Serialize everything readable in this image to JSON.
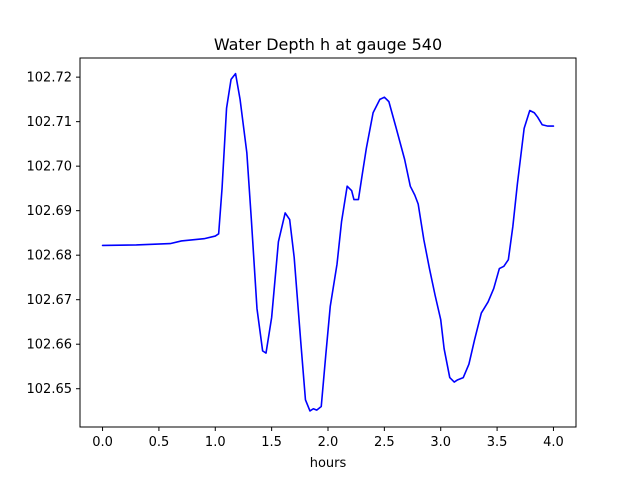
{
  "chart_data": {
    "type": "line",
    "title": "Water Depth h at gauge 540",
    "xlabel": "hours",
    "ylabel": "",
    "xlim": [
      -0.2,
      4.2
    ],
    "ylim": [
      102.6414,
      102.7243
    ],
    "x_ticks": [
      0.0,
      0.5,
      1.0,
      1.5,
      2.0,
      2.5,
      3.0,
      3.5,
      4.0
    ],
    "x_tick_labels": [
      "0.0",
      "0.5",
      "1.0",
      "1.5",
      "2.0",
      "2.5",
      "3.0",
      "3.5",
      "4.0"
    ],
    "y_ticks": [
      102.65,
      102.66,
      102.67,
      102.68,
      102.69,
      102.7,
      102.71,
      102.72
    ],
    "y_tick_labels": [
      "102.65",
      "102.66",
      "102.67",
      "102.68",
      "102.69",
      "102.70",
      "102.71",
      "102.72"
    ],
    "grid": false,
    "series": [
      {
        "color": "#0000ff",
        "x": [
          0.0,
          0.3,
          0.6,
          0.7,
          0.9,
          1.0,
          1.03,
          1.06,
          1.1,
          1.14,
          1.18,
          1.22,
          1.28,
          1.32,
          1.37,
          1.42,
          1.45,
          1.5,
          1.56,
          1.62,
          1.66,
          1.7,
          1.76,
          1.8,
          1.84,
          1.87,
          1.9,
          1.94,
          1.98,
          2.02,
          2.08,
          2.12,
          2.17,
          2.21,
          2.23,
          2.27,
          2.3,
          2.34,
          2.4,
          2.46,
          2.5,
          2.54,
          2.6,
          2.68,
          2.73,
          2.77,
          2.8,
          2.85,
          2.9,
          2.95,
          3.0,
          3.03,
          3.08,
          3.12,
          3.15,
          3.2,
          3.25,
          3.3,
          3.36,
          3.42,
          3.47,
          3.52,
          3.56,
          3.6,
          3.64,
          3.68,
          3.74,
          3.79,
          3.83,
          3.86,
          3.9,
          3.95,
          4.0
        ],
        "y": [
          102.6822,
          102.6823,
          102.6826,
          102.6832,
          102.6837,
          102.6843,
          102.6848,
          102.695,
          102.713,
          102.7195,
          102.7208,
          102.715,
          102.703,
          102.688,
          102.668,
          102.6585,
          102.658,
          102.666,
          102.683,
          102.6895,
          102.688,
          102.6795,
          102.66,
          102.6475,
          102.645,
          102.6455,
          102.6452,
          102.646,
          102.6575,
          102.6685,
          102.678,
          102.6875,
          102.6955,
          102.6945,
          102.6925,
          102.6925,
          102.6975,
          102.704,
          102.712,
          102.715,
          102.7155,
          102.7145,
          102.709,
          102.7015,
          102.6955,
          102.6935,
          102.6915,
          102.6835,
          102.677,
          102.671,
          102.6655,
          102.659,
          102.6525,
          102.6515,
          102.652,
          102.6525,
          102.6555,
          102.661,
          102.667,
          102.6695,
          102.6725,
          102.677,
          102.6775,
          102.679,
          102.6865,
          102.696,
          102.7085,
          102.7125,
          102.712,
          102.711,
          102.7093,
          102.709,
          102.709
        ]
      }
    ]
  }
}
